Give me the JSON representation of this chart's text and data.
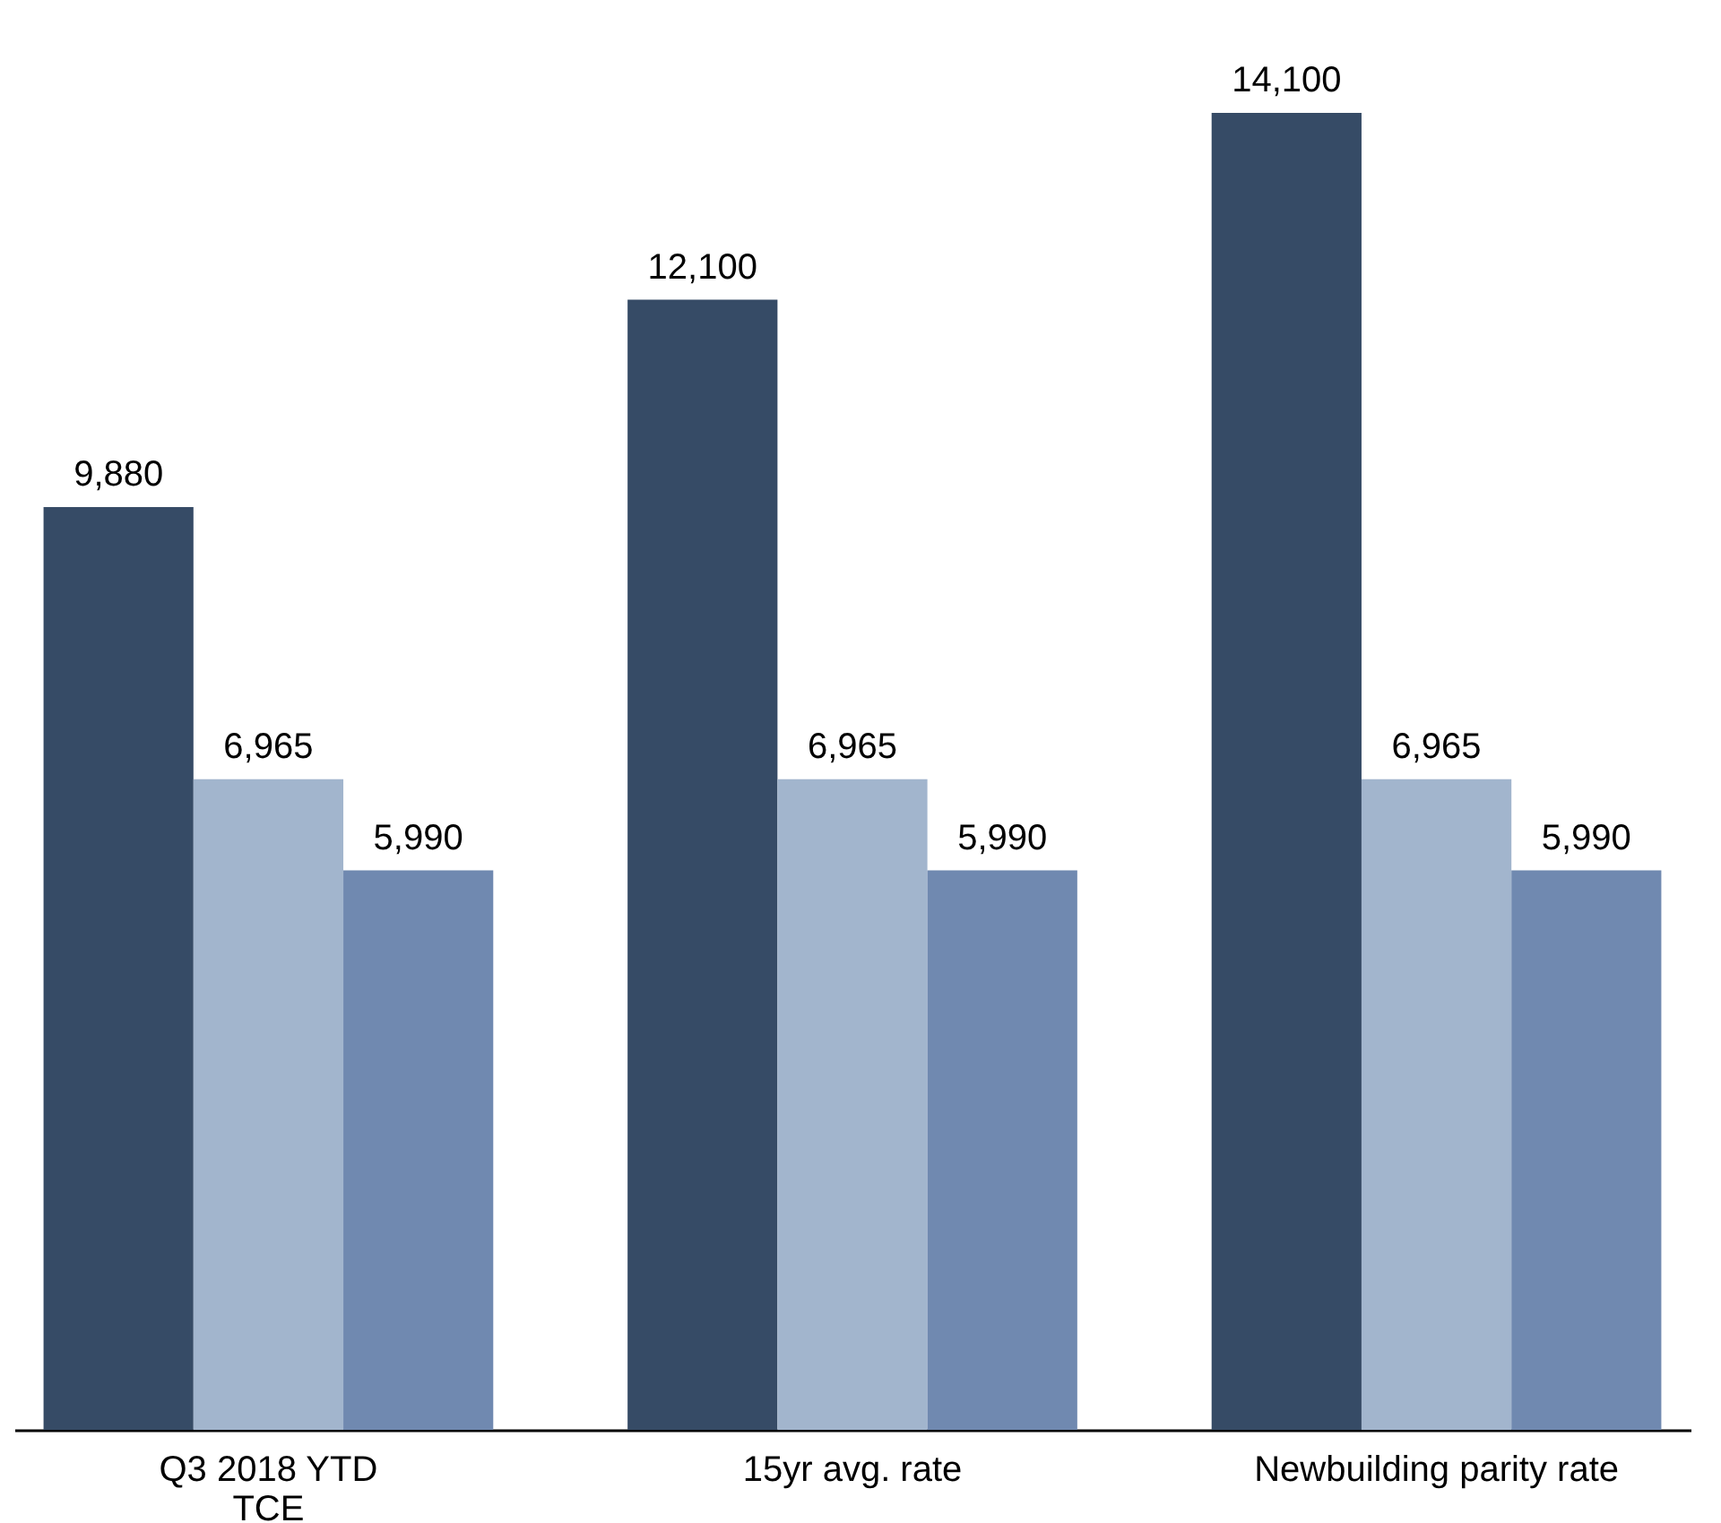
{
  "chart_data": {
    "type": "bar",
    "categories": [
      "Q3 2018 YTD\nTCE",
      "15yr avg. rate",
      "Newbuilding parity rate"
    ],
    "series": [
      {
        "color": "#364b66",
        "values": [
          9880,
          12100,
          14100
        ],
        "value_labels": [
          "9,880",
          "12,100",
          "14,100"
        ]
      },
      {
        "color": "#a2b5cd",
        "values": [
          6965,
          6965,
          6965
        ],
        "value_labels": [
          "6,965",
          "6,965",
          "6,965"
        ]
      },
      {
        "color": "#7089b0",
        "values": [
          5990,
          5990,
          5990
        ],
        "value_labels": [
          "5,990",
          "5,990",
          "5,990"
        ]
      }
    ],
    "grid": false,
    "legend": false
  }
}
